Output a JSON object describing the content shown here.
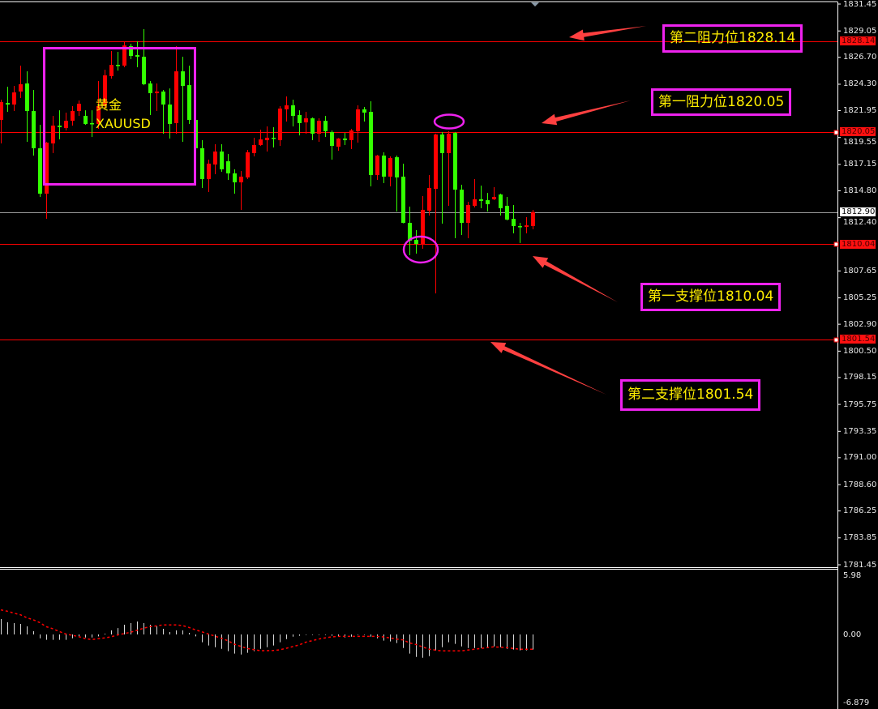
{
  "symbol": {
    "name_cn": "黄金",
    "ticker": "XAUUSD"
  },
  "annotations": [
    {
      "text": "第二阻力位1828.14",
      "price": 1828.14
    },
    {
      "text": "第一阻力位1820.05",
      "price": 1820.05
    },
    {
      "text": "第一支撑位1810.04",
      "price": 1810.04
    },
    {
      "text": "第二支撑位1801.54",
      "price": 1801.54
    }
  ],
  "colors": {
    "bull": "#ff0000",
    "bear": "#33ff00",
    "level_line": "#ff0000",
    "bid_line": "#9a9a9a",
    "annotation_border": "#ee22ee",
    "annotation_text": "#ffee00",
    "arrow": "#ff4040",
    "histogram": "#d8d8d8",
    "signal": "#ff0000"
  },
  "chart_data": [
    {
      "type": "candlestick",
      "title": "",
      "ylim": [
        1781.45,
        1831.45
      ],
      "y_ticks": [
        "1831.45",
        "1829.05",
        "1826.70",
        "1824.30",
        "1821.95",
        "1819.55",
        "1817.15",
        "1814.80",
        "1812.40",
        "1807.65",
        "1805.25",
        "1802.90",
        "1800.50",
        "1798.15",
        "1795.75",
        "1793.35",
        "1791.00",
        "1788.60",
        "1786.25",
        "1783.85",
        "1781.45"
      ],
      "price_badges": [
        {
          "text": "1828.14",
          "price": 1828.14,
          "kind": "level"
        },
        {
          "text": "1820.05",
          "price": 1820.05,
          "kind": "level"
        },
        {
          "text": "1812.90",
          "price": 1812.9,
          "kind": "bid"
        },
        {
          "text": "1810.04",
          "price": 1810.04,
          "kind": "level"
        },
        {
          "text": "1801.54",
          "price": 1801.54,
          "kind": "level"
        }
      ],
      "ohlc_fields": [
        "open",
        "high",
        "low",
        "close"
      ],
      "ohlc": [
        [
          1821.12,
          1822.92,
          1819.02,
          1822.71
        ],
        [
          1822.63,
          1824.08,
          1821.84,
          1822.49
        ],
        [
          1822.49,
          1824.15,
          1821.91,
          1823.57
        ],
        [
          1823.65,
          1825.96,
          1823.07,
          1824.3
        ],
        [
          1824.37,
          1825.45,
          1819.17,
          1821.91
        ],
        [
          1821.91,
          1823.79,
          1817.94,
          1818.59
        ],
        [
          1818.59,
          1820.68,
          1814.25,
          1814.54
        ],
        [
          1814.54,
          1819.17,
          1812.3,
          1819.09
        ],
        [
          1819.02,
          1821.48,
          1818.16,
          1820.61
        ],
        [
          1820.61,
          1821.98,
          1819.38,
          1820.47
        ],
        [
          1820.39,
          1821.77,
          1820.18,
          1821.04
        ],
        [
          1821.04,
          1822.35,
          1820.61,
          1821.91
        ],
        [
          1821.91,
          1822.85,
          1821.48,
          1822.56
        ],
        [
          1821.48,
          1821.98,
          1820.68,
          1820.76
        ],
        [
          1820.83,
          1821.98,
          1819.6,
          1820.76
        ],
        [
          1820.76,
          1824.59,
          1820.32,
          1822.35
        ],
        [
          1822.42,
          1825.6,
          1822.13,
          1825.09
        ],
        [
          1825.02,
          1827.26,
          1824.8,
          1826.03
        ],
        [
          1826.03,
          1827.19,
          1825.52,
          1825.96
        ],
        [
          1825.96,
          1828.13,
          1825.81,
          1827.76
        ],
        [
          1827.69,
          1827.91,
          1826.54,
          1826.82
        ],
        [
          1826.9,
          1828.13,
          1825.81,
          1826.75
        ],
        [
          1826.75,
          1829.21,
          1824.22,
          1824.3
        ],
        [
          1824.37,
          1824.59,
          1821.55,
          1823.5
        ],
        [
          1823.5,
          1824.37,
          1821.91,
          1823.65
        ],
        [
          1823.65,
          1823.79,
          1819.89,
          1822.49
        ],
        [
          1822.49,
          1823.93,
          1819.46,
          1820.76
        ],
        [
          1820.83,
          1827.69,
          1819.89,
          1825.45
        ],
        [
          1825.45,
          1826.75,
          1819.17,
          1824.15
        ],
        [
          1824.22,
          1825.96,
          1820.76,
          1821.12
        ],
        [
          1821.12,
          1821.2,
          1818.5,
          1818.59
        ],
        [
          1818.59,
          1819.31,
          1815.05,
          1815.84
        ],
        [
          1815.84,
          1817.58,
          1814.69,
          1817.22
        ],
        [
          1817.14,
          1818.95,
          1816.28,
          1818.3
        ],
        [
          1818.3,
          1818.95,
          1816.49,
          1816.71
        ],
        [
          1817.43,
          1818.08,
          1815.77,
          1816.35
        ],
        [
          1816.35,
          1816.71,
          1814.54,
          1815.55
        ],
        [
          1815.55,
          1816.57,
          1813.1,
          1816.06
        ],
        [
          1815.99,
          1818.44,
          1815.84,
          1818.23
        ],
        [
          1818.16,
          1819.53,
          1817.87,
          1818.88
        ],
        [
          1818.88,
          1820.25,
          1818.8,
          1819.38
        ],
        [
          1819.31,
          1820.54,
          1818.3,
          1819.53
        ],
        [
          1819.53,
          1820.47,
          1818.66,
          1819.46
        ],
        [
          1819.31,
          1822.35,
          1818.8,
          1822.13
        ],
        [
          1822.06,
          1823.21,
          1820.97,
          1822.42
        ],
        [
          1822.42,
          1822.92,
          1820.54,
          1821.48
        ],
        [
          1821.55,
          1821.98,
          1819.74,
          1820.83
        ],
        [
          1820.9,
          1821.84,
          1819.89,
          1821.26
        ],
        [
          1821.26,
          1821.33,
          1819.31,
          1819.89
        ],
        [
          1819.89,
          1821.26,
          1819.17,
          1821.04
        ],
        [
          1821.04,
          1821.48,
          1819.6,
          1820.11
        ],
        [
          1820.03,
          1820.18,
          1817.58,
          1818.8
        ],
        [
          1818.73,
          1819.5,
          1818.37,
          1819.46
        ],
        [
          1819.46,
          1819.96,
          1818.88,
          1819.31
        ],
        [
          1819.31,
          1820.32,
          1818.52,
          1820.18
        ],
        [
          1820.11,
          1822.42,
          1819.09,
          1822.06
        ],
        [
          1822.06,
          1822.27,
          1820.97,
          1821.77
        ],
        [
          1821.84,
          1822.78,
          1815.19,
          1816.2
        ],
        [
          1816.2,
          1818.0,
          1815.77,
          1817.94
        ],
        [
          1817.94,
          1818.23,
          1815.48,
          1816.06
        ],
        [
          1816.06,
          1817.87,
          1815.19,
          1817.72
        ],
        [
          1817.79,
          1817.94,
          1812.95,
          1815.99
        ],
        [
          1816.06,
          1817.22,
          1811.9,
          1811.94
        ],
        [
          1811.94,
          1813.39,
          1809.05,
          1810.35
        ],
        [
          1810.42,
          1811.29,
          1809.2,
          1810.06
        ],
        [
          1810.06,
          1814.33,
          1809.63,
          1813.1
        ],
        [
          1813.02,
          1816.2,
          1812.59,
          1815.05
        ],
        [
          1814.97,
          1819.89,
          1805.65,
          1819.82
        ],
        [
          1819.82,
          1820.03,
          1811.87,
          1818.16
        ],
        [
          1818.16,
          1820.11,
          1813.46,
          1819.89
        ],
        [
          1819.96,
          1820.03,
          1810.57,
          1814.9
        ],
        [
          1814.9,
          1815.34,
          1810.86,
          1811.94
        ],
        [
          1811.94,
          1813.82,
          1810.57,
          1813.53
        ],
        [
          1813.46,
          1815.84,
          1813.31,
          1814.04
        ],
        [
          1814.04,
          1815.26,
          1813.24,
          1813.89
        ],
        [
          1813.96,
          1814.61,
          1812.95,
          1813.6
        ],
        [
          1814.04,
          1815.12,
          1813.96,
          1814.25
        ],
        [
          1814.47,
          1814.54,
          1812.59,
          1813.24
        ],
        [
          1813.46,
          1814.25,
          1812.16,
          1812.23
        ],
        [
          1812.3,
          1813.53,
          1811.0,
          1811.65
        ],
        [
          1811.65,
          1811.94,
          1810.14,
          1811.58
        ],
        [
          1811.58,
          1812.45,
          1811.0,
          1811.72
        ],
        [
          1811.65,
          1813.1,
          1811.36,
          1812.9
        ]
      ],
      "levels": [
        {
          "price": 1828.14,
          "style": "resistance"
        },
        {
          "price": 1820.05,
          "style": "resistance"
        },
        {
          "price": 1812.9,
          "style": "bid"
        },
        {
          "price": 1810.04,
          "style": "support"
        },
        {
          "price": 1801.54,
          "style": "support"
        }
      ]
    },
    {
      "type": "bar",
      "title": "",
      "ylim": [
        -6.879,
        5.98
      ],
      "y_ticks": [
        "5.98",
        "0.00",
        "-6.879"
      ],
      "histogram": [
        1.54,
        1.21,
        1.13,
        1.05,
        0.81,
        0.32,
        -0.38,
        -0.54,
        -0.54,
        -0.54,
        -0.54,
        -0.38,
        -0.19,
        -0.3,
        -0.3,
        -0.19,
        0.08,
        0.4,
        0.64,
        0.97,
        1.13,
        1.29,
        1.13,
        0.97,
        0.81,
        0.57,
        0.24,
        0.4,
        0.4,
        0.16,
        -0.19,
        -0.78,
        -1.1,
        -1.27,
        -1.43,
        -1.67,
        -1.91,
        -2.0,
        -1.83,
        -1.67,
        -1.43,
        -1.27,
        -1.1,
        -0.78,
        -0.46,
        -0.22,
        -0.13,
        -0.05,
        -0.05,
        -0.05,
        -0.05,
        -0.13,
        -0.22,
        -0.3,
        -0.22,
        -0.05,
        -0.05,
        -0.22,
        -0.38,
        -0.62,
        -0.7,
        -0.86,
        -1.35,
        -1.91,
        -2.24,
        -2.32,
        -2.16,
        -1.59,
        -1.27,
        -0.78,
        -0.94,
        -1.19,
        -1.35,
        -1.35,
        -1.35,
        -1.35,
        -1.19,
        -1.27,
        -1.43,
        -1.51,
        -1.59,
        -1.59,
        -1.51
      ],
      "signal": [
        2.45,
        2.32,
        2.13,
        1.97,
        1.67,
        1.46,
        1.19,
        0.78,
        0.57,
        0.3,
        0.05,
        -0.08,
        -0.22,
        -0.41,
        -0.51,
        -0.43,
        -0.35,
        -0.24,
        -0.05,
        0.08,
        0.22,
        0.41,
        0.62,
        0.78,
        0.86,
        0.95,
        0.95,
        0.95,
        0.89,
        0.7,
        0.46,
        0.27,
        0.05,
        -0.16,
        -0.38,
        -0.62,
        -0.97,
        -1.19,
        -1.4,
        -1.51,
        -1.62,
        -1.62,
        -1.6,
        -1.54,
        -1.38,
        -1.21,
        -1.05,
        -0.78,
        -0.62,
        -0.46,
        -0.35,
        -0.24,
        -0.19,
        -0.19,
        -0.19,
        -0.19,
        -0.19,
        -0.19,
        -0.19,
        -0.24,
        -0.35,
        -0.46,
        -0.54,
        -0.84,
        -1.0,
        -1.24,
        -1.46,
        -1.56,
        -1.64,
        -1.64,
        -1.64,
        -1.64,
        -1.56,
        -1.48,
        -1.4,
        -1.32,
        -1.24,
        -1.27,
        -1.32,
        -1.4,
        -1.48,
        -1.48,
        -1.48
      ]
    }
  ]
}
